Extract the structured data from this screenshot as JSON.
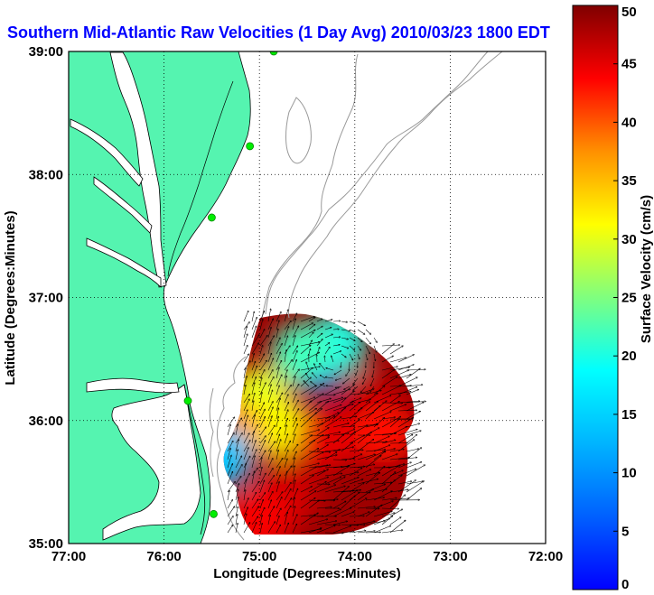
{
  "chart_data": {
    "type": "vector-map",
    "title": "Southern Mid-Atlantic Raw Velocities (1 Day Avg) 2010/03/23 1800 EDT",
    "xlabel": "Longitude (Degrees:Minutes)",
    "ylabel": "Latitude (Degrees:Minutes)",
    "colorbar_label": "Surface Velocity (cm/s)",
    "xlim": [
      -77,
      -72
    ],
    "ylim": [
      35,
      39
    ],
    "x_ticks": [
      {
        "value": -77,
        "label": "77:00"
      },
      {
        "value": -76,
        "label": "76:00"
      },
      {
        "value": -75,
        "label": "75:00"
      },
      {
        "value": -74,
        "label": "74:00"
      },
      {
        "value": -73,
        "label": "73:00"
      },
      {
        "value": -72,
        "label": "72:00"
      }
    ],
    "y_ticks": [
      {
        "value": 35,
        "label": "35:00"
      },
      {
        "value": 36,
        "label": "36:00"
      },
      {
        "value": 37,
        "label": "37:00"
      },
      {
        "value": 38,
        "label": "38:00"
      },
      {
        "value": 39,
        "label": "39:00"
      }
    ],
    "colorbar_range": [
      0,
      50
    ],
    "colorbar_ticks": [
      {
        "value": 0,
        "label": "0"
      },
      {
        "value": 5,
        "label": "5"
      },
      {
        "value": 10,
        "label": "10"
      },
      {
        "value": 15,
        "label": "15"
      },
      {
        "value": 20,
        "label": "20"
      },
      {
        "value": 25,
        "label": "25"
      },
      {
        "value": 30,
        "label": "30"
      },
      {
        "value": 35,
        "label": "35"
      },
      {
        "value": 40,
        "label": "40"
      },
      {
        "value": 45,
        "label": "45"
      },
      {
        "value": 50,
        "label": "50"
      }
    ],
    "grid": true,
    "colormap": "jet",
    "colors": {
      "land": "#55f4b0",
      "title": "#0000ff",
      "bathymetry": "#999999",
      "arrows": "#000000",
      "stations": "#00ee00"
    },
    "stations": [
      {
        "lon": -74.85,
        "lat": 39.0
      },
      {
        "lon": -75.1,
        "lat": 38.23
      },
      {
        "lon": -75.5,
        "lat": 37.65
      },
      {
        "lon": -75.75,
        "lat": 36.16
      },
      {
        "lon": -75.48,
        "lat": 35.24
      }
    ],
    "velocity_regions": [
      {
        "lon": -74.42,
        "lat": 36.48,
        "speed": 11
      },
      {
        "lon": -74.2,
        "lat": 36.62,
        "speed": 20
      },
      {
        "lon": -74.55,
        "lat": 36.55,
        "speed": 22
      },
      {
        "lon": -75.0,
        "lat": 36.2,
        "speed": 30
      },
      {
        "lon": -74.8,
        "lat": 35.95,
        "speed": 31
      },
      {
        "lon": -75.25,
        "lat": 35.9,
        "speed": 36
      },
      {
        "lon": -75.4,
        "lat": 35.7,
        "speed": 16
      },
      {
        "lon": -74.3,
        "lat": 35.85,
        "speed": 45
      },
      {
        "lon": -74.7,
        "lat": 35.4,
        "speed": 46
      },
      {
        "lon": -75.0,
        "lat": 35.2,
        "speed": 44
      },
      {
        "lon": -73.85,
        "lat": 36.15,
        "speed": 47
      },
      {
        "lon": -73.7,
        "lat": 35.9,
        "speed": 43
      }
    ]
  }
}
